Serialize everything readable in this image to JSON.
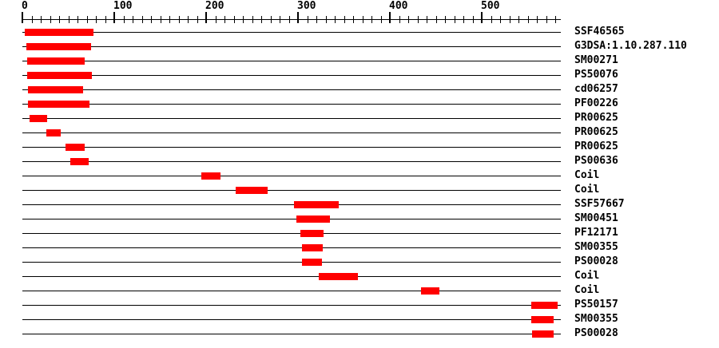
{
  "page": {
    "background_color": "#ffffff",
    "text_color": "#000000"
  },
  "chart_data": {
    "type": "bar",
    "variant": "protein-sequence-feature-map",
    "orientation": "horizontal-interval",
    "bar_color": "#ff0000",
    "line_color": "#000000",
    "grid": false,
    "legend": false,
    "axis": {
      "position": "top",
      "min": 0,
      "max": 586,
      "minor_tick_interval": 10,
      "major_tick_interval": 100,
      "tick_max": 580,
      "major_tick_labels": [
        "0",
        "100",
        "200",
        "300",
        "400",
        "500"
      ]
    },
    "features": [
      {
        "label": "SSF46565",
        "start": 3,
        "end": 77
      },
      {
        "label": "G3DSA:1.10.287.110",
        "start": 4,
        "end": 75
      },
      {
        "label": "SM00271",
        "start": 5,
        "end": 68
      },
      {
        "label": "PS50076",
        "start": 5,
        "end": 76
      },
      {
        "label": "cd06257",
        "start": 6,
        "end": 66
      },
      {
        "label": "PF00226",
        "start": 6,
        "end": 73
      },
      {
        "label": "PR00625",
        "start": 8,
        "end": 27
      },
      {
        "label": "PR00625",
        "start": 26,
        "end": 42
      },
      {
        "label": "PR00625",
        "start": 47,
        "end": 68
      },
      {
        "label": "PS00636",
        "start": 52,
        "end": 72
      },
      {
        "label": "Coil",
        "start": 195,
        "end": 216
      },
      {
        "label": "Coil",
        "start": 232,
        "end": 267
      },
      {
        "label": "SSF57667",
        "start": 296,
        "end": 344
      },
      {
        "label": "SM00451",
        "start": 298,
        "end": 335
      },
      {
        "label": "PF12171",
        "start": 303,
        "end": 328
      },
      {
        "label": "SM00355",
        "start": 304,
        "end": 327
      },
      {
        "label": "PS00028",
        "start": 304,
        "end": 326
      },
      {
        "label": "Coil",
        "start": 323,
        "end": 365
      },
      {
        "label": "Coil",
        "start": 434,
        "end": 454
      },
      {
        "label": "PS50157",
        "start": 554,
        "end": 583
      },
      {
        "label": "SM00355",
        "start": 554,
        "end": 578
      },
      {
        "label": "PS00028",
        "start": 555,
        "end": 578
      }
    ]
  }
}
